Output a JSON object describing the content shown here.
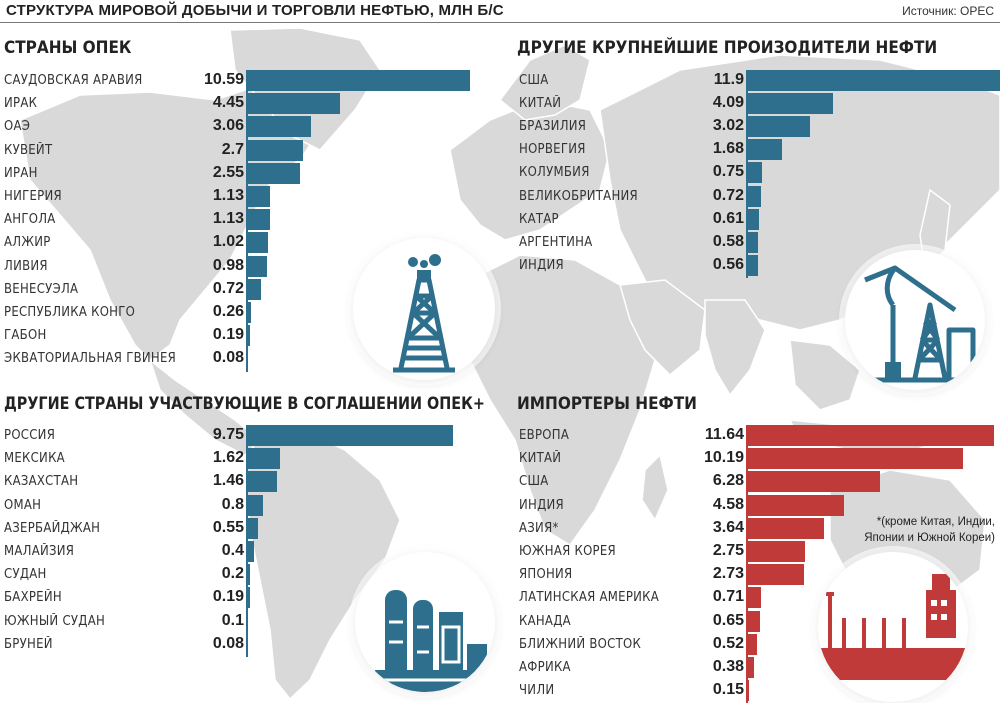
{
  "header": {
    "title": "СТРУКТУРА МИРОВОЙ ДОБЫЧИ И ТОРГОВЛИ НЕФТЬЮ, МЛН Б/С",
    "source": "Источник: OPEC"
  },
  "colors": {
    "production_bar": "#2e6f8e",
    "import_bar": "#c03a3a",
    "map": "#d9d9d9"
  },
  "icons": [
    "oil-derrick-icon",
    "pumpjack-icon",
    "refinery-icon",
    "tanker-ship-icon"
  ],
  "footnote": "*(кроме Китая, Индии, Японии и Южной Кореи)",
  "chart_data": [
    {
      "type": "bar",
      "title": "СТРАНЫ ОПЕК",
      "categories": [
        "САУДОВСКАЯ АРАВИЯ",
        "ИРАК",
        "ОАЭ",
        "КУВЕЙТ",
        "ИРАН",
        "НИГЕРИЯ",
        "АНГОЛА",
        "АЛЖИР",
        "ЛИВИЯ",
        "ВЕНЕСУЭЛА",
        "РЕСПУБЛИКА КОНГО",
        "ГАБОН",
        "ЭКВАТОРИАЛЬНАЯ ГВИНЕЯ"
      ],
      "values": [
        10.59,
        4.45,
        3.06,
        2.7,
        2.55,
        1.13,
        1.13,
        1.02,
        0.98,
        0.72,
        0.26,
        0.19,
        0.08
      ],
      "labels": [
        "10.59",
        "4.45",
        "3.06",
        "2.7",
        "2.55",
        "1.13",
        "1.13",
        "1.02",
        "0.98",
        "0.72",
        "0.26",
        "0.19",
        "0.08"
      ]
    },
    {
      "type": "bar",
      "title": "ДРУГИЕ КРУПНЕЙШИЕ ПРОИЗОДИТЕЛИ НЕФТИ",
      "categories": [
        "США",
        "КИТАЙ",
        "БРАЗИЛИЯ",
        "НОРВЕГИЯ",
        "КОЛУМБИЯ",
        "ВЕЛИКОБРИТАНИЯ",
        "КАТАР",
        "АРГЕНТИНА",
        "ИНДИЯ"
      ],
      "values": [
        11.9,
        4.09,
        3.02,
        1.68,
        0.75,
        0.72,
        0.61,
        0.58,
        0.56
      ],
      "labels": [
        "11.9",
        "4.09",
        "3.02",
        "1.68",
        "0.75",
        "0.72",
        "0.61",
        "0.58",
        "0.56"
      ]
    },
    {
      "type": "bar",
      "title": "ДРУГИЕ СТРАНЫ УЧАСТВУЮЩИЕ В СОГЛАШЕНИИ ОПЕК+",
      "categories": [
        "РОССИЯ",
        "МЕКСИКА",
        "КАЗАХСТАН",
        "ОМАН",
        "АЗЕРБАЙДЖАН",
        "МАЛАЙЗИЯ",
        "СУДАН",
        "БАХРЕЙН",
        "ЮЖНЫЙ СУДАН",
        "БРУНЕЙ"
      ],
      "values": [
        9.75,
        1.62,
        1.46,
        0.8,
        0.55,
        0.4,
        0.2,
        0.19,
        0.1,
        0.08
      ],
      "labels": [
        "9.75",
        "1.62",
        "1.46",
        "0.8",
        "0.55",
        "0.4",
        "0.2",
        "0.19",
        "0.1",
        "0.08"
      ]
    },
    {
      "type": "bar",
      "title": "ИМПОРТЕРЫ НЕФТИ",
      "categories": [
        "ЕВРОПА",
        "КИТАЙ",
        "США",
        "ИНДИЯ",
        "АЗИЯ*",
        "ЮЖНАЯ КОРЕЯ",
        "ЯПОНИЯ",
        "ЛАТИНСКАЯ АМЕРИКА",
        "КАНАДА",
        "БЛИЖНИЙ ВОСТОК",
        "АФРИКА",
        "ЧИЛИ"
      ],
      "values": [
        11.64,
        10.19,
        6.28,
        4.58,
        3.64,
        2.75,
        2.73,
        0.71,
        0.65,
        0.52,
        0.38,
        0.15
      ],
      "labels": [
        "11.64",
        "10.19",
        "6.28",
        "4.58",
        "3.64",
        "2.75",
        "2.73",
        "0.71",
        "0.65",
        "0.52",
        "0.38",
        "0.15"
      ]
    }
  ]
}
